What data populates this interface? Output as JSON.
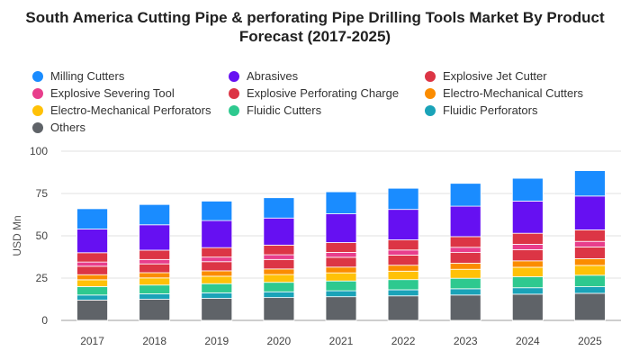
{
  "chart_data": {
    "type": "bar",
    "stacked": true,
    "title": "South America Cutting Pipe & perforating Pipe Drilling Tools Market By Product Forecast (2017-2025)",
    "ylabel": "USD Mn",
    "xlabel": "",
    "ylim": [
      0,
      100
    ],
    "yticks": [
      0,
      25,
      50,
      75,
      100
    ],
    "grid": true,
    "legend_position": "top",
    "categories": [
      "2017",
      "2018",
      "2019",
      "2020",
      "2021",
      "2022",
      "2023",
      "2024",
      "2025"
    ],
    "series": [
      {
        "name": "Others",
        "color": "#5f6368",
        "values": [
          12.0,
          12.5,
          13.0,
          13.5,
          14.0,
          14.5,
          15.0,
          15.5,
          16.0
        ]
      },
      {
        "name": "Fluidic Perforators",
        "color": "#1aa3b8",
        "values": [
          3.0,
          3.2,
          3.3,
          3.4,
          3.5,
          3.6,
          3.7,
          3.8,
          3.9
        ]
      },
      {
        "name": "Fluidic Cutters",
        "color": "#2ec98f",
        "values": [
          5.0,
          5.2,
          5.4,
          5.6,
          5.8,
          6.0,
          6.2,
          6.5,
          6.8
        ]
      },
      {
        "name": "Electro-Mechanical Perforators",
        "color": "#ffc107",
        "values": [
          4.0,
          4.2,
          4.4,
          4.6,
          4.8,
          5.0,
          5.3,
          5.6,
          5.8
        ]
      },
      {
        "name": "Electro-Mechanical Cutters",
        "color": "#fb8c00",
        "values": [
          3.0,
          3.1,
          3.2,
          3.3,
          3.4,
          3.5,
          3.6,
          3.8,
          4.0
        ]
      },
      {
        "name": "Explosive Perforating Charge",
        "color": "#dc3545",
        "values": [
          5.0,
          5.2,
          5.4,
          5.6,
          5.8,
          6.0,
          6.3,
          6.6,
          6.9
        ]
      },
      {
        "name": "Explosive Severing Tool",
        "color": "#e83e8c",
        "values": [
          2.5,
          2.6,
          2.7,
          2.8,
          2.9,
          3.0,
          3.1,
          3.2,
          3.3
        ]
      },
      {
        "name": "Explosive Jet Cutter",
        "color": "#dc3545",
        "values": [
          5.5,
          5.5,
          5.6,
          5.7,
          5.8,
          6.0,
          6.3,
          6.5,
          6.8
        ]
      },
      {
        "name": "Abrasives",
        "color": "#6610f2",
        "values": [
          14.0,
          15.0,
          16.0,
          16.0,
          17.0,
          18.0,
          18.0,
          19.0,
          20.0
        ]
      },
      {
        "name": "Milling Cutters",
        "color": "#1a8cff",
        "values": [
          12.0,
          12.0,
          11.5,
          12.0,
          13.0,
          12.5,
          13.5,
          13.5,
          15.0
        ]
      }
    ]
  }
}
